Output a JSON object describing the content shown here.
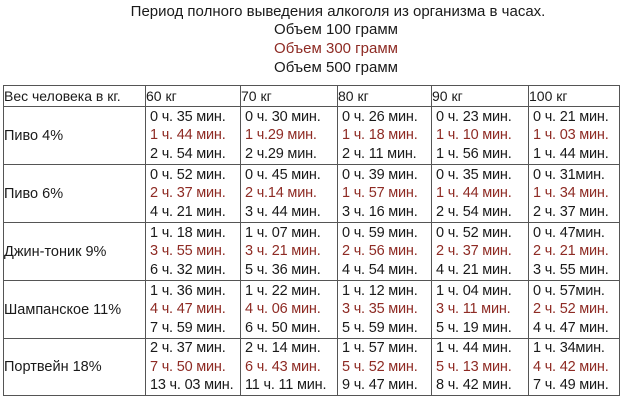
{
  "header": {
    "title": "Период полного выведения алкоголя из организма в часах.",
    "serving_1": "Объем 100 грамм",
    "serving_2": "Объем 300 грамм",
    "serving_3": "Объем 500 грамм"
  },
  "colors": {
    "text": "#1a1a1a",
    "highlight": "#8e2b24",
    "border": "#555555"
  },
  "table": {
    "corner_label": "Вес человека в кг.",
    "weights": [
      "60 кг",
      "70 кг",
      "80 кг",
      "90 кг",
      "100 кг"
    ],
    "rows": [
      {
        "drink": "Пиво 4%",
        "cells": [
          [
            "0 ч. 35 мин.",
            "1 ч. 44 мин.",
            "2 ч. 54 мин."
          ],
          [
            "0 ч. 30 мин.",
            "1 ч.29 мин.",
            "2 ч.29 мин."
          ],
          [
            "0 ч. 26 мин.",
            "1 ч. 18 мин.",
            "2 ч. 11 мин."
          ],
          [
            "0 ч. 23 мин.",
            "1 ч. 10 мин.",
            "1 ч. 56 мин."
          ],
          [
            "0 ч. 21 мин.",
            "1 ч. 03 мин.",
            "1 ч. 44 мин."
          ]
        ]
      },
      {
        "drink": "Пиво 6%",
        "cells": [
          [
            "0 ч. 52 мин.",
            "2 ч. 37 мин.",
            "4 ч. 21 мин."
          ],
          [
            "0 ч. 45 мин.",
            "2 ч.14 мин.",
            "3 ч. 44 мин."
          ],
          [
            "0 ч. 39 мин.",
            "1 ч. 57 мин.",
            "3 ч. 16 мин."
          ],
          [
            "0 ч. 35 мин.",
            "1 ч. 44 мин.",
            "2 ч. 54 мин."
          ],
          [
            "0 ч. 31мин.",
            "1 ч. 34 мин.",
            "2 ч. 37 мин."
          ]
        ]
      },
      {
        "drink": "Джин-тоник 9%",
        "cells": [
          [
            "1 ч. 18 мин.",
            "3 ч. 55 мин.",
            "6 ч. 32 мин."
          ],
          [
            "1 ч. 07 мин.",
            "3 ч. 21 мин.",
            "5 ч. 36 мин."
          ],
          [
            "0 ч. 59 мин.",
            "2 ч. 56 мин.",
            "4 ч. 54 мин."
          ],
          [
            "0 ч. 52 мин.",
            "2 ч. 37 мин.",
            "4 ч. 21 мин."
          ],
          [
            "0 ч. 47мин.",
            "2 ч. 21 мин.",
            "3 ч. 55 мин."
          ]
        ]
      },
      {
        "drink": "Шампанское 11%",
        "cells": [
          [
            "1 ч. 36 мин.",
            "4 ч. 47 мин.",
            "7 ч. 59 мин."
          ],
          [
            "1 ч. 22 мин.",
            "4 ч. 06 мин.",
            "6 ч. 50 мин."
          ],
          [
            "1 ч. 12 мин.",
            "3 ч. 35 мин.",
            "5 ч. 59 мин."
          ],
          [
            "1 ч. 04 мин.",
            "3 ч. 11 мин.",
            "5 ч. 19 мин."
          ],
          [
            "0 ч. 57мин.",
            "2 ч. 52 мин.",
            "4 ч. 47 мин."
          ]
        ]
      },
      {
        "drink": "Портвейн 18%",
        "cells": [
          [
            "2 ч. 37 мин.",
            "7 ч. 50 мин.",
            "13 ч. 03 мин."
          ],
          [
            "2 ч. 14 мин.",
            "6 ч. 43 мин.",
            "11 ч. 11 мин."
          ],
          [
            "1 ч. 57 мин.",
            "5 ч. 52 мин.",
            "9 ч. 47 мин."
          ],
          [
            "1 ч. 44 мин.",
            "5 ч. 13 мин.",
            "8 ч. 42 мин."
          ],
          [
            "1 ч. 34мин.",
            "4 ч. 42 мин.",
            "7 ч. 49 мин."
          ]
        ]
      }
    ]
  }
}
